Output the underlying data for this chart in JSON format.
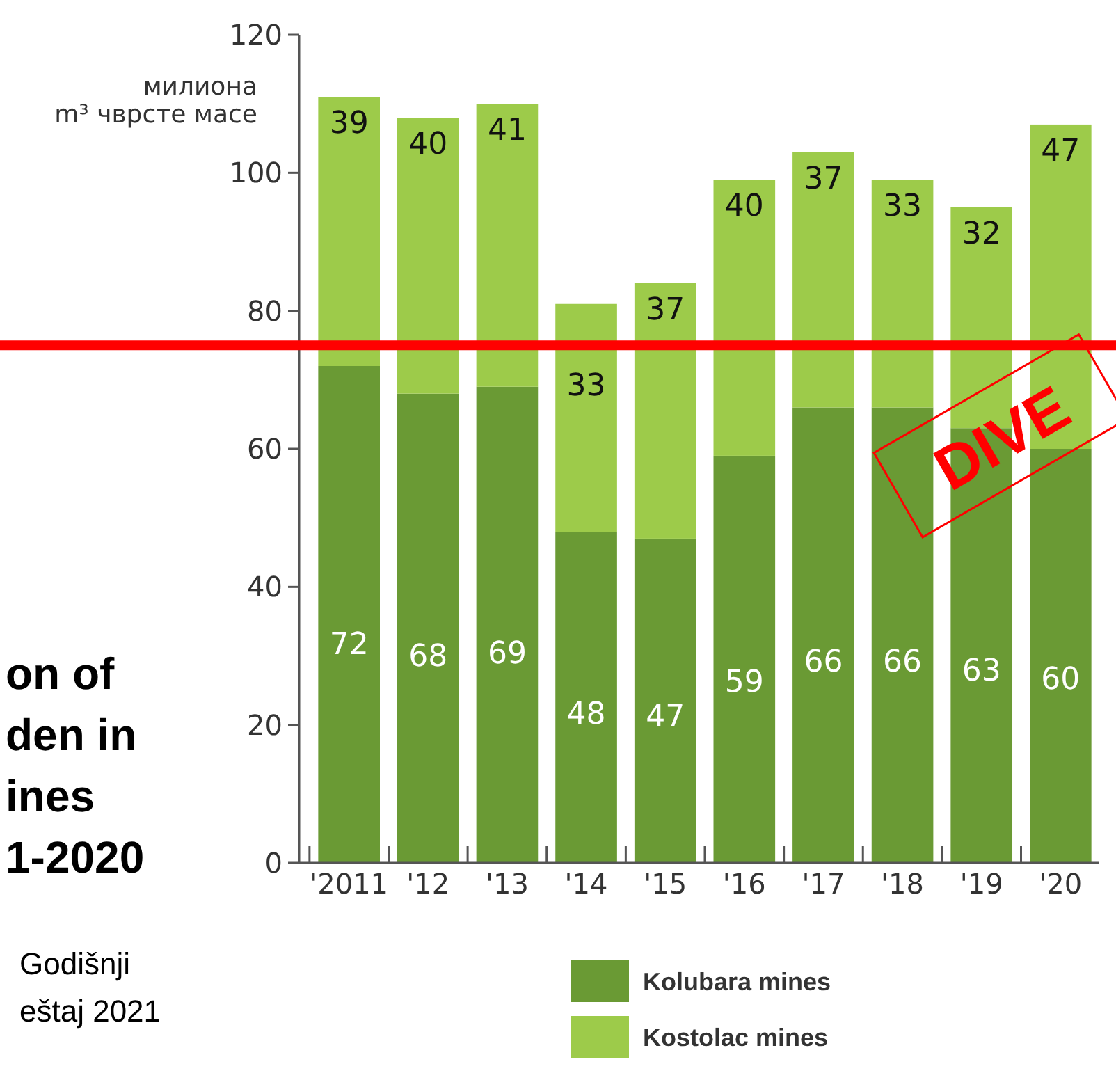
{
  "chart_data": {
    "type": "bar",
    "stacked": true,
    "title": "on of\nden in\nines\n1-2020",
    "ylabel": "милиона\nm³ чврсте масе",
    "categories": [
      "'2011",
      "'12",
      "'13",
      "'14",
      "'15",
      "'16",
      "'17",
      "'18",
      "'19",
      "'20"
    ],
    "series": [
      {
        "name": "Kolubara mines",
        "color": "#6a9a34",
        "values": [
          72,
          68,
          69,
          48,
          47,
          59,
          66,
          66,
          63,
          60
        ]
      },
      {
        "name": "Kostolac mines",
        "color": "#9dcb4a",
        "values": [
          39,
          40,
          41,
          33,
          37,
          40,
          37,
          33,
          32,
          47
        ]
      }
    ],
    "ylim": [
      0,
      120
    ],
    "yticks": [
      0,
      20,
      40,
      60,
      80,
      100,
      120
    ],
    "data_labels": true,
    "legend": "bottom",
    "grid": false,
    "ref_lines": [
      {
        "axis": "y",
        "value": 75,
        "color": "#ff0000"
      }
    ],
    "annotations": [
      "Godišnji\neštaj 2021",
      "DIVE"
    ]
  }
}
